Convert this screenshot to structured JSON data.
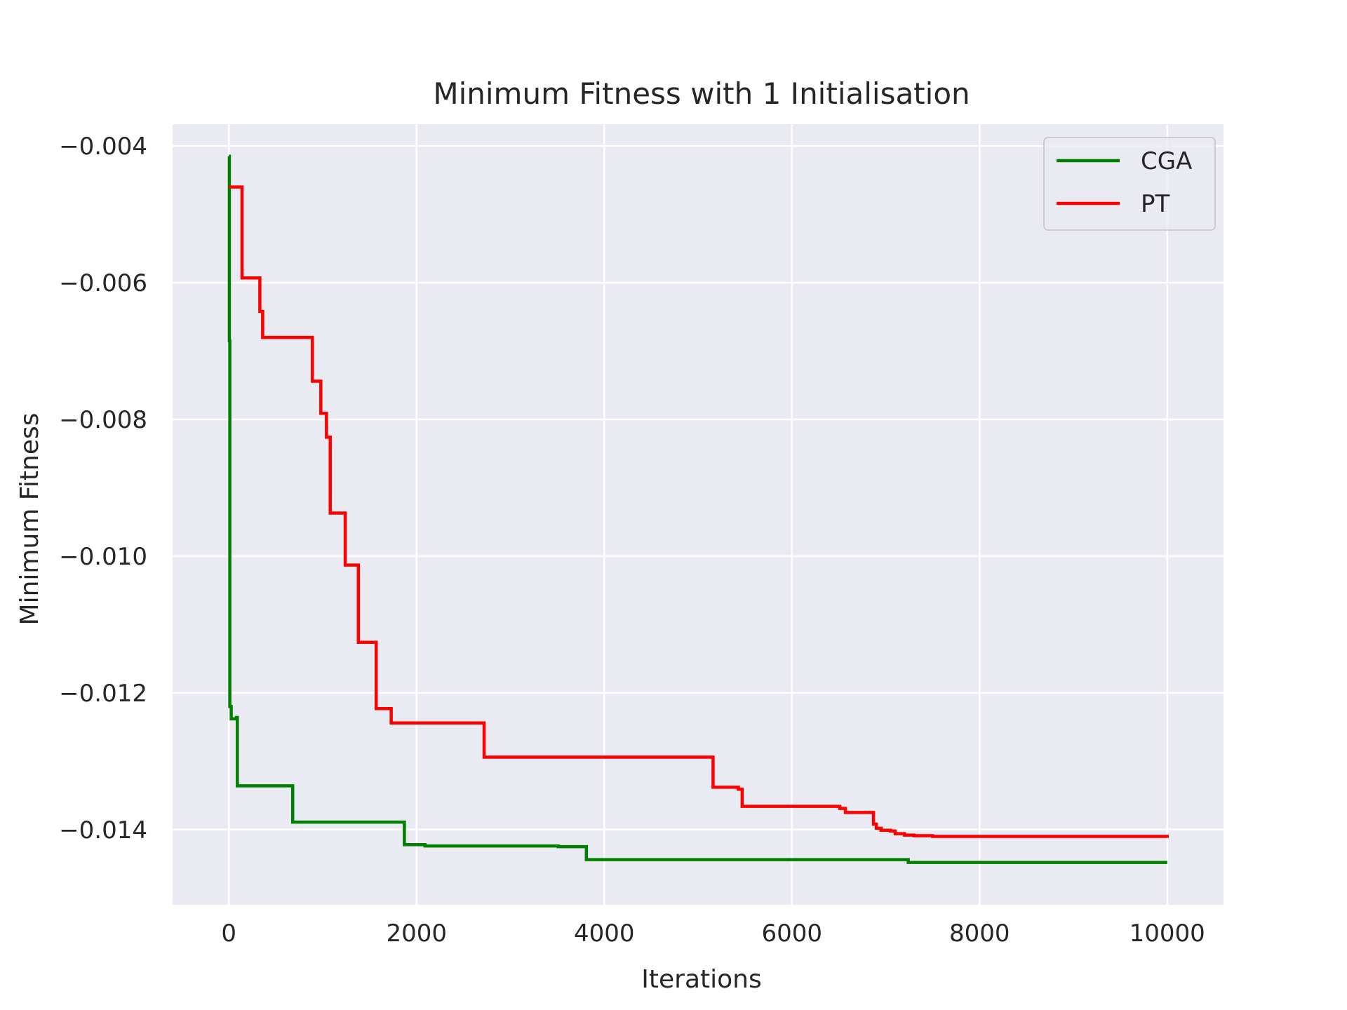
{
  "chart_data": {
    "type": "line",
    "title": "Minimum Fitness with 1 Initialisation",
    "xlabel": "Iterations",
    "ylabel": "Minimum Fitness",
    "xlim": [
      -600,
      10600
    ],
    "ylim": [
      -0.0151,
      -0.00368
    ],
    "xticks": [
      0,
      2000,
      4000,
      6000,
      8000,
      10000
    ],
    "xtick_labels": [
      "0",
      "2000",
      "4000",
      "6000",
      "8000",
      "10000"
    ],
    "yticks": [
      -0.004,
      -0.006,
      -0.008,
      -0.01,
      -0.012,
      -0.014
    ],
    "ytick_labels": [
      "−0.004",
      "−0.006",
      "−0.008",
      "−0.010",
      "−0.012",
      "−0.014"
    ],
    "grid": true,
    "legend_position": "top-right",
    "step": true,
    "series": [
      {
        "name": "CGA",
        "color": "#008000",
        "points": [
          [
            0,
            -0.00415
          ],
          [
            5,
            -0.00685
          ],
          [
            10,
            -0.0122
          ],
          [
            25,
            -0.01238
          ],
          [
            80,
            -0.01236
          ],
          [
            90,
            -0.01336
          ],
          [
            670,
            -0.01336
          ],
          [
            680,
            -0.01389
          ],
          [
            1860,
            -0.01389
          ],
          [
            1870,
            -0.01422
          ],
          [
            2080,
            -0.01422
          ],
          [
            2090,
            -0.01424
          ],
          [
            3500,
            -0.01424
          ],
          [
            3510,
            -0.01425
          ],
          [
            3800,
            -0.01425
          ],
          [
            3810,
            -0.01444
          ],
          [
            7230,
            -0.01444
          ],
          [
            7240,
            -0.01448
          ],
          [
            10000,
            -0.01448
          ]
        ]
      },
      {
        "name": "PT",
        "color": "#ff0000",
        "points": [
          [
            0,
            -0.0046
          ],
          [
            130,
            -0.0046
          ],
          [
            140,
            -0.00593
          ],
          [
            320,
            -0.00593
          ],
          [
            330,
            -0.00642
          ],
          [
            350,
            -0.00642
          ],
          [
            360,
            -0.0068
          ],
          [
            880,
            -0.0068
          ],
          [
            890,
            -0.00744
          ],
          [
            970,
            -0.00744
          ],
          [
            980,
            -0.00791
          ],
          [
            1030,
            -0.00791
          ],
          [
            1040,
            -0.00826
          ],
          [
            1070,
            -0.00826
          ],
          [
            1080,
            -0.00937
          ],
          [
            1230,
            -0.00937
          ],
          [
            1240,
            -0.01013
          ],
          [
            1370,
            -0.01013
          ],
          [
            1380,
            -0.01126
          ],
          [
            1560,
            -0.01126
          ],
          [
            1570,
            -0.01223
          ],
          [
            1720,
            -0.01223
          ],
          [
            1730,
            -0.01244
          ],
          [
            2710,
            -0.01244
          ],
          [
            2720,
            -0.01294
          ],
          [
            5150,
            -0.01294
          ],
          [
            5160,
            -0.01338
          ],
          [
            5420,
            -0.01338
          ],
          [
            5430,
            -0.01341
          ],
          [
            5460,
            -0.01341
          ],
          [
            5470,
            -0.01366
          ],
          [
            6500,
            -0.01366
          ],
          [
            6510,
            -0.01369
          ],
          [
            6560,
            -0.01369
          ],
          [
            6570,
            -0.01375
          ],
          [
            6860,
            -0.01375
          ],
          [
            6870,
            -0.01392
          ],
          [
            6900,
            -0.01398
          ],
          [
            6950,
            -0.01401
          ],
          [
            7050,
            -0.01402
          ],
          [
            7100,
            -0.01406
          ],
          [
            7200,
            -0.01408
          ],
          [
            7300,
            -0.01409
          ],
          [
            7500,
            -0.0141
          ],
          [
            10000,
            -0.01412
          ]
        ]
      }
    ]
  }
}
